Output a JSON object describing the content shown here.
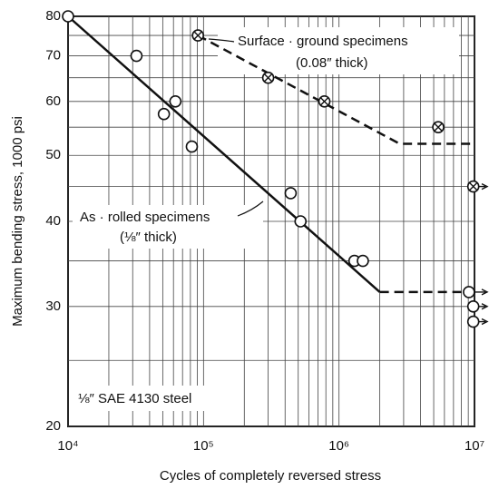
{
  "chart_data": {
    "type": "scatter",
    "ylabel": "Maximum bending stress, 1000 psi",
    "xlabel": "Cycles of completely reversed stress",
    "xlog": true,
    "ylog": true,
    "grid": true,
    "xlim": [
      10000,
      10000000
    ],
    "ylim": [
      20,
      80
    ],
    "xticks": [
      {
        "value": 10000,
        "label": "10⁴"
      },
      {
        "value": 100000,
        "label": "10⁵"
      },
      {
        "value": 1000000,
        "label": "10⁶"
      },
      {
        "value": 10000000,
        "label": "10⁷"
      }
    ],
    "yticks": [
      20,
      30,
      40,
      50,
      60,
      70,
      80
    ],
    "series": [
      {
        "marker": "circle",
        "color": "#111111",
        "x": [
          10000,
          32000,
          51000,
          62000,
          82000,
          440000,
          520000,
          1300000,
          1500000,
          9100000,
          9800000,
          9800000
        ],
        "values": [
          80,
          70,
          57.5,
          60,
          51.5,
          44,
          40,
          35,
          35,
          31.5,
          30,
          28.5
        ]
      },
      {
        "marker": "crossed",
        "color": "#111111",
        "x": [
          91000,
          300000,
          780000,
          5400000,
          9800000
        ],
        "values": [
          75,
          65,
          60,
          55,
          45
        ]
      }
    ],
    "lines": [
      {
        "style": "solid",
        "x": [
          10000,
          2000000
        ],
        "values": [
          80,
          31.5
        ]
      },
      {
        "style": "dashed",
        "x": [
          2000000,
          10000000
        ],
        "values": [
          31.5,
          31.5
        ]
      },
      {
        "style": "dashed",
        "x": [
          91000,
          2800000,
          10000000
        ],
        "values": [
          75,
          52,
          52
        ]
      }
    ],
    "annotations": [
      "Surface · ground specimens",
      "(0.08″ thick)",
      "As · rolled specimens",
      "(⅛″ thick)",
      "⅛″ SAE 4130 steel"
    ]
  }
}
